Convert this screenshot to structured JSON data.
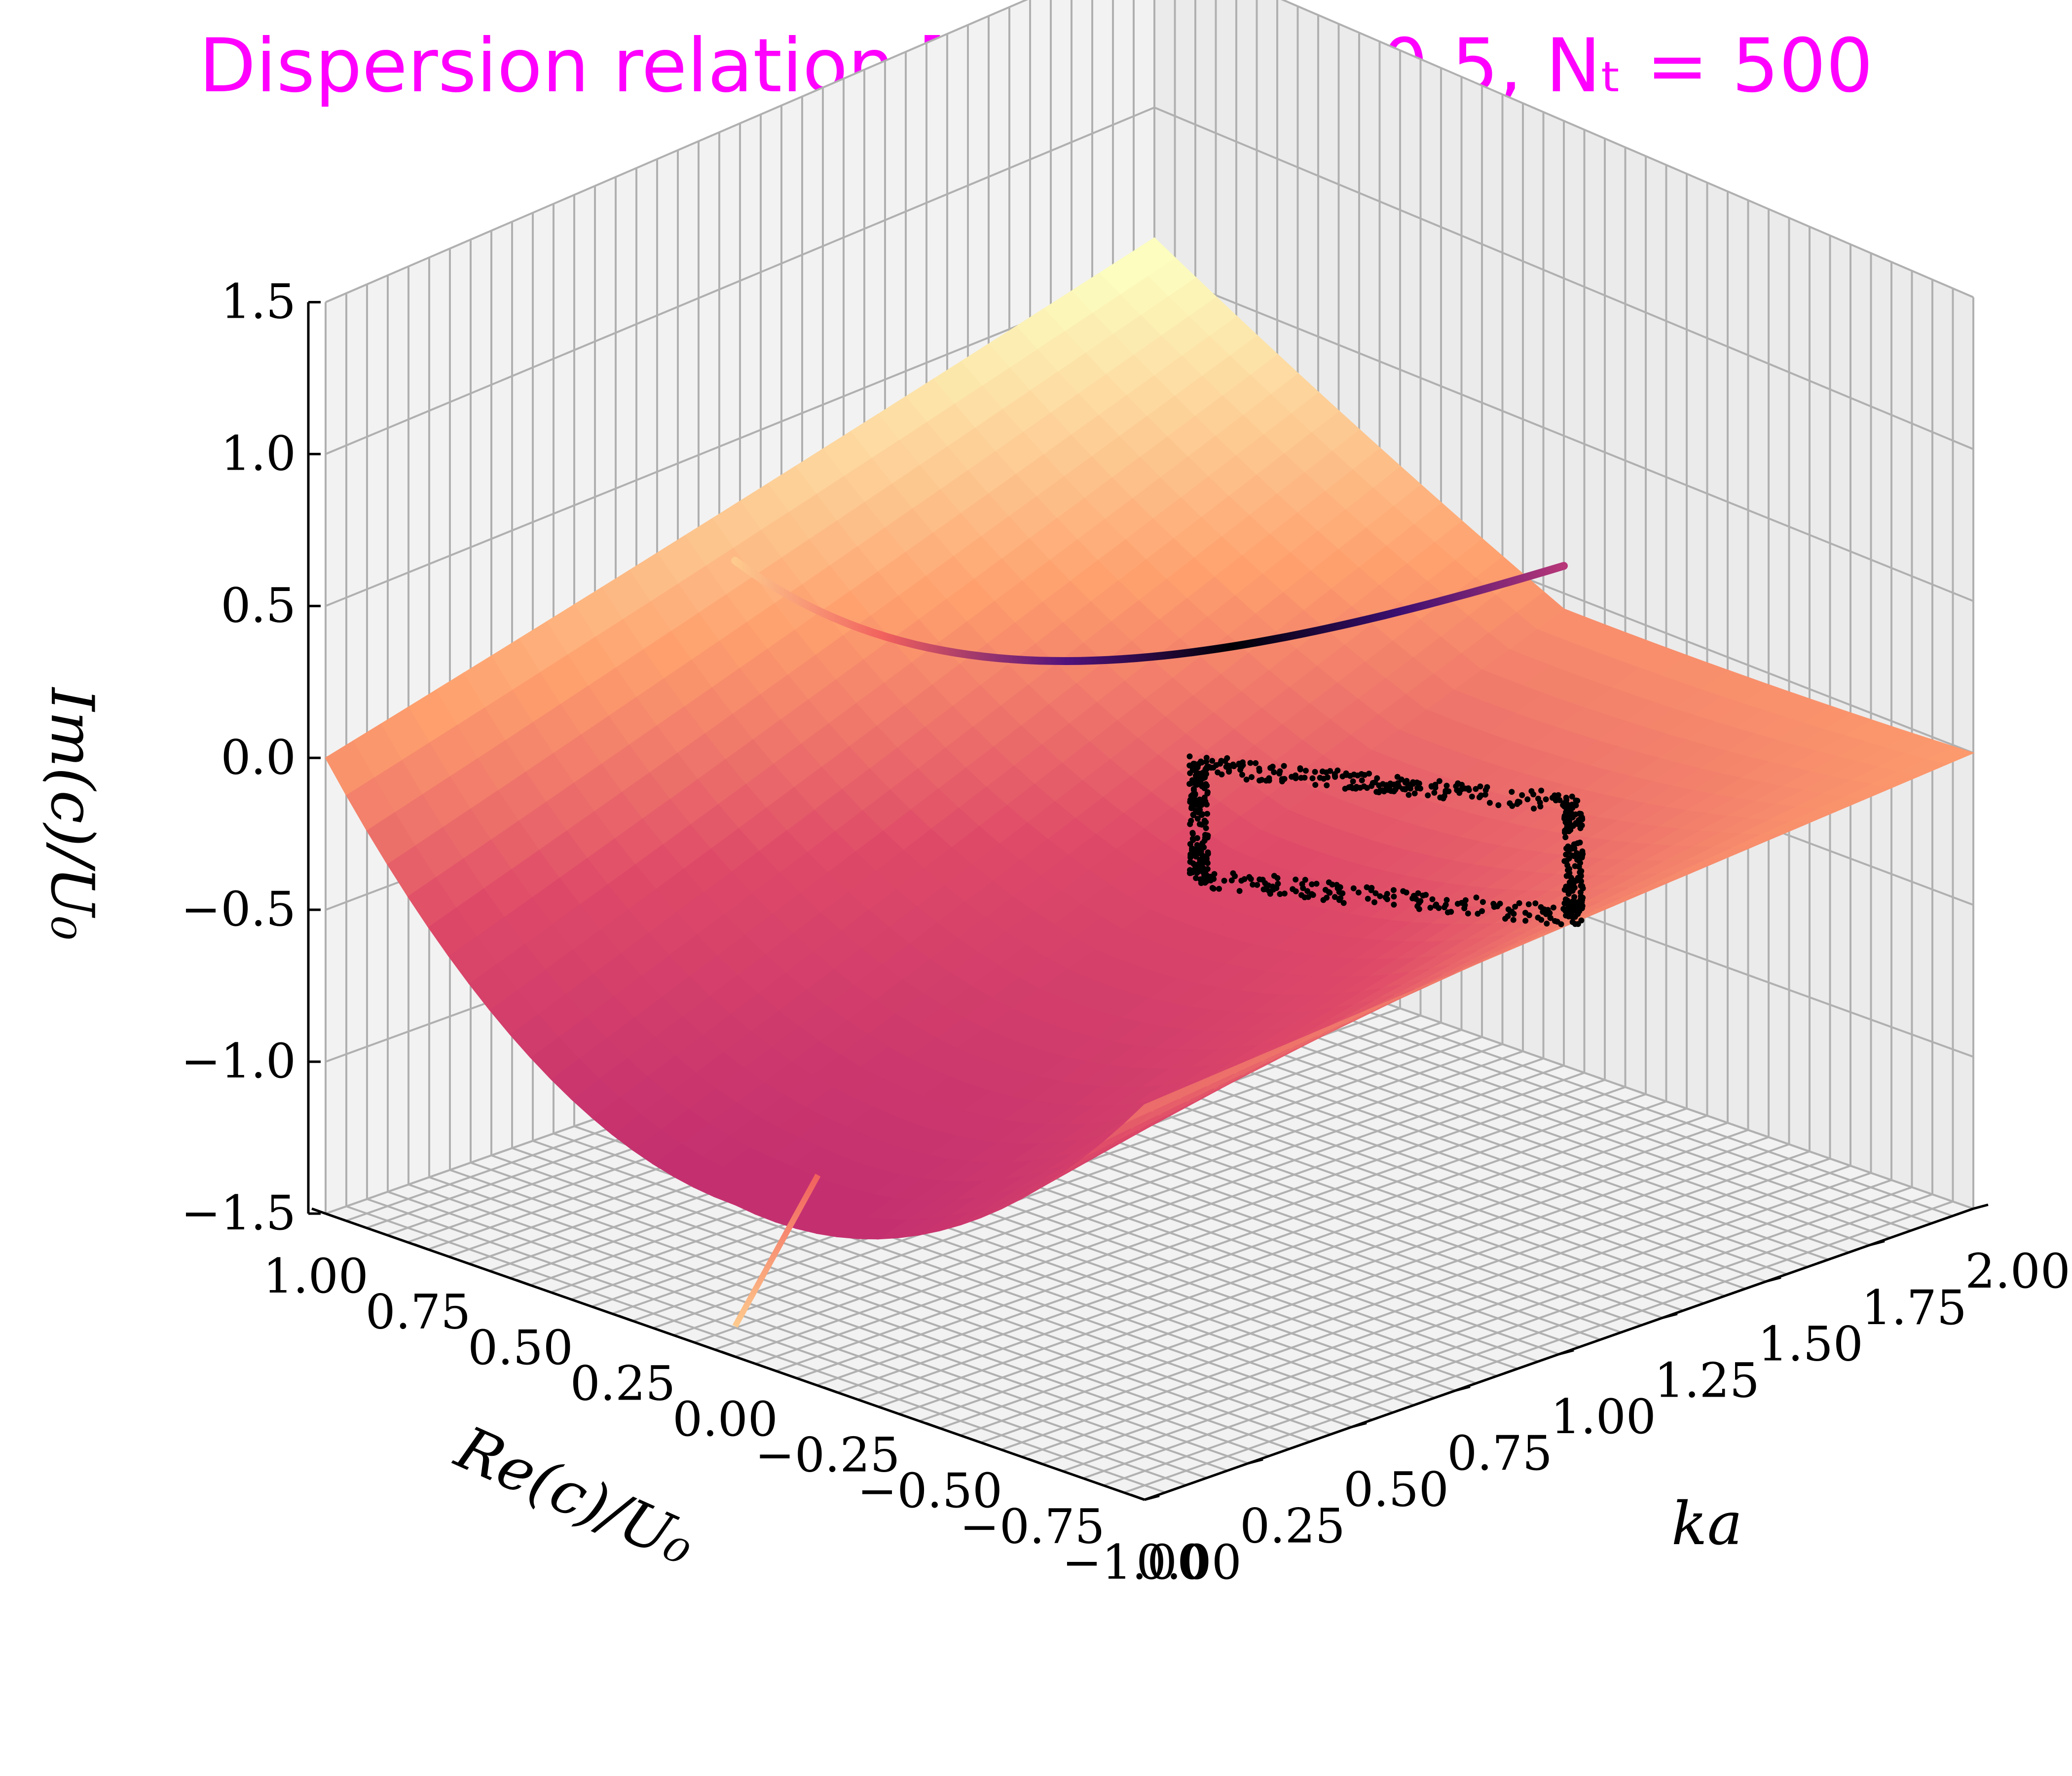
{
  "chart_data": {
    "type": "surface3d",
    "title": "Dispersion relation [tanh] : f₀ = 0.5, Nₜ = 500",
    "title_color": "#ff00ff",
    "colormap": "magma",
    "x_axis": {
      "label": "Re(c)/U₀",
      "range": [
        1.0,
        -1.0
      ],
      "ticks": [
        "1.00",
        "0.75",
        "0.50",
        "0.25",
        "0.00",
        "−0.25",
        "−0.50",
        "−0.75",
        "−1.00"
      ]
    },
    "y_axis": {
      "label": "ka",
      "range": [
        0.0,
        2.0
      ],
      "ticks": [
        "0.00",
        "0.25",
        "0.50",
        "0.75",
        "1.00",
        "1.25",
        "1.50",
        "1.75",
        "2.00"
      ]
    },
    "z_axis": {
      "label": "Im(c)/U₀",
      "range": [
        -1.5,
        1.5
      ],
      "ticks": [
        "−1.5",
        "−1.0",
        "−0.5",
        "0.0",
        "0.5",
        "1.0",
        "1.5"
      ]
    },
    "grid": true,
    "series": [
      {
        "style": "surface",
        "samples": [
          {
            "re": 1.0,
            "ka": 0.0,
            "im": 0.0
          },
          {
            "re": 0.0,
            "ka": 0.0,
            "im": -1.0
          },
          {
            "re": -1.0,
            "ka": 0.0,
            "im": -0.6
          },
          {
            "re": 1.0,
            "ka": 2.0,
            "im": 0.6
          },
          {
            "re": 0.0,
            "ka": 2.0,
            "im": -0.05
          },
          {
            "re": -1.0,
            "ka": 2.0,
            "im": 0.0
          }
        ]
      },
      {
        "style": "line",
        "samples": [
          {
            "re": 0.0,
            "ka": 0.0,
            "im": 1.1
          },
          {
            "re": 0.0,
            "ka": 0.5,
            "im": 0.55
          },
          {
            "re": 0.0,
            "ka": 1.0,
            "im": 0.25
          },
          {
            "re": 0.0,
            "ka": 1.5,
            "im": 0.08
          },
          {
            "re": 0.0,
            "ka": 2.0,
            "im": 0.0
          }
        ]
      },
      {
        "style": "line",
        "samples": [
          {
            "re": 0.0,
            "ka": 0.0,
            "im": -1.4
          },
          {
            "re": 0.0,
            "ka": 0.2,
            "im": -1.0
          }
        ]
      },
      {
        "style": "scatter",
        "color": "#000000",
        "region": {
          "re": [
            -0.25,
            0.25
          ],
          "ka": [
            1.0,
            2.0
          ],
          "im": [
            -0.1,
            0.15
          ]
        }
      }
    ]
  }
}
